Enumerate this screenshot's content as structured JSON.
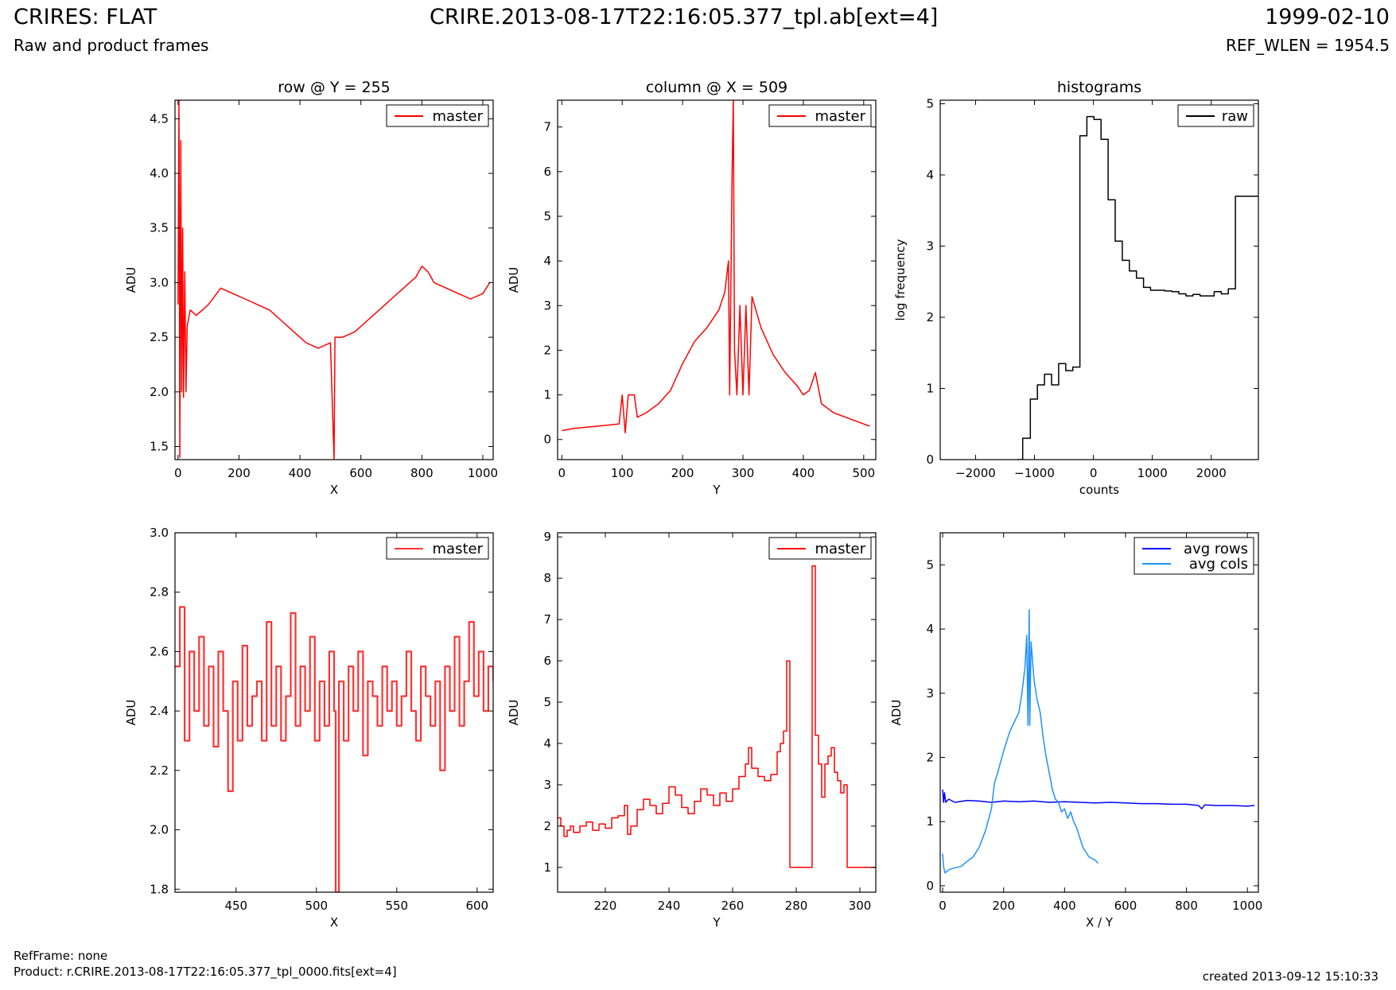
{
  "header": {
    "title": "CRIRES: FLAT",
    "subtitle": "Raw and product frames",
    "filename": "CRIRE.2013-08-17T22:16:05.377_tpl.ab[ext=4]",
    "date": "1999-02-10",
    "ref_wlen": "REF_WLEN = 1954.5"
  },
  "footer": {
    "refframe": "RefFrame: none",
    "product": "Product: r.CRIRE.2013-08-17T22:16:05.377_tpl_0000.fits[ext=4]",
    "created": "created 2013-09-12 15:10:33"
  },
  "colors": {
    "master": "#ff0000",
    "raw": "#000000",
    "avg_rows": "#0000ff",
    "avg_cols": "#1e90ff"
  },
  "chart_data": [
    {
      "id": "row-full",
      "type": "line",
      "title": "row @ Y = 255",
      "xlabel": "X",
      "ylabel": "ADU",
      "xlim": [
        -10,
        1034
      ],
      "ylim": [
        1.38,
        4.67
      ],
      "xticks": [
        0,
        200,
        400,
        600,
        800,
        1000
      ],
      "yticks": [
        1.5,
        2.0,
        2.5,
        3.0,
        3.5,
        4.0,
        4.5
      ],
      "ytick_labels": [
        "1.5",
        "2.0",
        "2.5",
        "3.0",
        "3.5",
        "4.0",
        "4.5"
      ],
      "step": false,
      "series": [
        {
          "name": "master",
          "color": "#ff0000",
          "x": [
            0,
            3,
            6,
            9,
            12,
            15,
            18,
            22,
            26,
            30,
            40,
            60,
            100,
            140,
            180,
            220,
            260,
            300,
            340,
            380,
            420,
            460,
            500,
            512,
            515,
            540,
            580,
            620,
            660,
            700,
            740,
            780,
            800,
            820,
            840,
            880,
            920,
            960,
            1000,
            1023
          ],
          "y": [
            2.8,
            4.67,
            1.4,
            4.3,
            2.0,
            3.5,
            1.95,
            3.1,
            2.0,
            2.6,
            2.75,
            2.7,
            2.8,
            2.95,
            2.9,
            2.85,
            2.8,
            2.75,
            2.65,
            2.55,
            2.45,
            2.4,
            2.45,
            1.38,
            2.5,
            2.5,
            2.55,
            2.65,
            2.75,
            2.85,
            2.95,
            3.05,
            3.15,
            3.1,
            3.0,
            2.95,
            2.9,
            2.85,
            2.9,
            3.0
          ]
        }
      ],
      "legend": [
        "master"
      ],
      "legend_loc": "top-right"
    },
    {
      "id": "col-full",
      "type": "line",
      "title": "column @ X = 509",
      "xlabel": "Y",
      "ylabel": "ADU",
      "xlim": [
        -7,
        520
      ],
      "ylim": [
        -0.45,
        7.6
      ],
      "xticks": [
        0,
        100,
        200,
        300,
        400,
        500
      ],
      "yticks": [
        0,
        1,
        2,
        3,
        4,
        5,
        6,
        7
      ],
      "step": false,
      "series": [
        {
          "name": "master",
          "color": "#ff0000",
          "x": [
            0,
            20,
            60,
            95,
            100,
            105,
            110,
            120,
            125,
            140,
            160,
            180,
            200,
            220,
            240,
            260,
            270,
            276,
            278,
            282,
            284,
            286,
            290,
            295,
            300,
            305,
            310,
            315,
            330,
            350,
            370,
            390,
            400,
            410,
            420,
            430,
            450,
            470,
            490,
            510
          ],
          "y": [
            0.2,
            0.25,
            0.3,
            0.35,
            1.0,
            0.15,
            1.0,
            1.0,
            0.5,
            0.6,
            0.8,
            1.1,
            1.7,
            2.2,
            2.5,
            2.9,
            3.3,
            4.0,
            1.0,
            6.0,
            7.6,
            2.0,
            1.0,
            3.0,
            1.0,
            3.0,
            1.0,
            3.2,
            2.5,
            1.9,
            1.5,
            1.2,
            1.0,
            1.1,
            1.5,
            0.8,
            0.6,
            0.5,
            0.4,
            0.3
          ]
        }
      ],
      "legend": [
        "master"
      ],
      "legend_loc": "top-right"
    },
    {
      "id": "histograms",
      "type": "line",
      "title": "histograms",
      "xlabel": "counts",
      "ylabel": "log frequency",
      "xlim": [
        -2600,
        2800
      ],
      "ylim": [
        0,
        5.05
      ],
      "xticks": [
        -2000,
        -1000,
        0,
        1000,
        2000
      ],
      "xtick_labels": [
        "−2000",
        "−1000",
        "0",
        "1000",
        "2000"
      ],
      "yticks": [
        0,
        1,
        2,
        3,
        4,
        5
      ],
      "step": true,
      "series": [
        {
          "name": "raw",
          "color": "#000000",
          "x": [
            -1300,
            -1200,
            -1070,
            -950,
            -830,
            -710,
            -590,
            -470,
            -350,
            -230,
            -110,
            10,
            130,
            250,
            370,
            490,
            610,
            730,
            850,
            970,
            1090,
            1210,
            1330,
            1450,
            1570,
            1690,
            1810,
            1930,
            2050,
            2170,
            2290,
            2410,
            2530,
            2650
          ],
          "y": [
            0,
            0.3,
            0.85,
            1.05,
            1.2,
            1.05,
            1.35,
            1.25,
            1.3,
            4.55,
            4.82,
            4.78,
            4.5,
            3.65,
            3.07,
            2.8,
            2.65,
            2.55,
            2.42,
            2.38,
            2.38,
            2.37,
            2.36,
            2.33,
            2.3,
            2.32,
            2.3,
            2.3,
            2.36,
            2.33,
            2.4,
            3.7,
            3.7,
            3.7
          ]
        }
      ],
      "legend": [
        "raw"
      ],
      "legend_loc": "top-right"
    },
    {
      "id": "row-zoom",
      "type": "line",
      "title": "",
      "xlabel": "X",
      "ylabel": "ADU",
      "xlim": [
        412,
        610
      ],
      "ylim": [
        1.79,
        3.0
      ],
      "xticks": [
        450,
        500,
        550,
        600
      ],
      "yticks": [
        1.8,
        2.0,
        2.2,
        2.4,
        2.6,
        2.8,
        3.0
      ],
      "ytick_labels": [
        "1.8",
        "2.0",
        "2.2",
        "2.4",
        "2.6",
        "2.8",
        "3.0"
      ],
      "step": true,
      "series": [
        {
          "name": "master",
          "color": "#ff3333",
          "x": [
            412,
            415,
            418,
            421,
            424,
            427,
            430,
            433,
            436,
            439,
            442,
            445,
            448,
            451,
            454,
            457,
            460,
            463,
            466,
            469,
            472,
            475,
            478,
            481,
            484,
            487,
            490,
            493,
            496,
            499,
            502,
            505,
            508,
            511,
            512,
            514,
            517,
            520,
            523,
            526,
            529,
            532,
            535,
            538,
            541,
            544,
            547,
            550,
            553,
            556,
            559,
            562,
            565,
            568,
            571,
            574,
            577,
            580,
            583,
            586,
            589,
            592,
            595,
            598,
            601,
            604,
            607,
            610
          ],
          "y": [
            2.55,
            2.75,
            2.3,
            2.6,
            2.4,
            2.65,
            2.35,
            2.55,
            2.28,
            2.6,
            2.4,
            2.13,
            2.5,
            2.3,
            2.62,
            2.35,
            2.45,
            2.5,
            2.3,
            2.7,
            2.35,
            2.55,
            2.3,
            2.45,
            2.73,
            2.35,
            2.55,
            2.4,
            2.65,
            2.3,
            2.5,
            2.35,
            2.6,
            2.4,
            1.79,
            2.5,
            2.3,
            2.55,
            2.4,
            2.6,
            2.25,
            2.5,
            2.45,
            2.35,
            2.55,
            2.4,
            2.5,
            2.35,
            2.45,
            2.6,
            2.4,
            2.3,
            2.55,
            2.45,
            2.35,
            2.5,
            2.2,
            2.55,
            2.4,
            2.65,
            2.35,
            2.5,
            2.7,
            2.45,
            2.6,
            2.4,
            2.55,
            2.5
          ]
        }
      ],
      "legend": [
        "master"
      ],
      "legend_loc": "top-right"
    },
    {
      "id": "col-zoom",
      "type": "line",
      "title": "",
      "xlabel": "Y",
      "ylabel": "ADU",
      "xlim": [
        205,
        305
      ],
      "ylim": [
        0.4,
        9.1
      ],
      "xticks": [
        220,
        240,
        260,
        280,
        300
      ],
      "yticks": [
        1,
        2,
        3,
        4,
        5,
        6,
        7,
        8,
        9
      ],
      "step": true,
      "series": [
        {
          "name": "master",
          "color": "#ff0000",
          "x": [
            205,
            206,
            207,
            208,
            209,
            210,
            212,
            214,
            216,
            218,
            220,
            222,
            224,
            226,
            227,
            228,
            230,
            232,
            234,
            236,
            238,
            240,
            242,
            244,
            246,
            248,
            250,
            252,
            254,
            256,
            258,
            260,
            262,
            264,
            265,
            266,
            268,
            270,
            272,
            274,
            275,
            276,
            277,
            278,
            281,
            284,
            285,
            286,
            287,
            288,
            289,
            290,
            291,
            292,
            293,
            294,
            295,
            296,
            297,
            298,
            305
          ],
          "y": [
            2.2,
            2.0,
            1.75,
            1.9,
            2.0,
            1.85,
            2.0,
            2.1,
            1.9,
            2.05,
            1.95,
            2.2,
            2.25,
            2.5,
            1.8,
            2.0,
            2.4,
            2.65,
            2.5,
            2.3,
            2.55,
            2.95,
            2.75,
            2.45,
            2.3,
            2.6,
            2.9,
            2.75,
            2.5,
            2.8,
            2.6,
            2.9,
            3.2,
            3.5,
            3.9,
            3.4,
            3.2,
            3.1,
            3.25,
            3.8,
            4.0,
            4.3,
            6.0,
            1.0,
            1.0,
            1.0,
            8.3,
            4.2,
            3.5,
            2.7,
            3.5,
            3.7,
            3.9,
            3.3,
            3.1,
            2.8,
            3.0,
            1.0,
            1.0,
            1.0,
            1.0
          ]
        }
      ],
      "legend": [
        "master"
      ],
      "legend_loc": "top-right"
    },
    {
      "id": "averages",
      "type": "line",
      "title": "",
      "xlabel": "X / Y",
      "ylabel": "ADU",
      "xlim": [
        -8,
        1036
      ],
      "ylim": [
        -0.1,
        5.5
      ],
      "xticks": [
        0,
        200,
        400,
        600,
        800,
        1000
      ],
      "yticks": [
        0,
        1,
        2,
        3,
        4,
        5
      ],
      "step": false,
      "series": [
        {
          "name": "avg rows",
          "color": "#0000ff",
          "x": [
            0,
            3,
            6,
            10,
            20,
            40,
            80,
            120,
            160,
            200,
            250,
            300,
            350,
            400,
            450,
            500,
            550,
            600,
            650,
            700,
            750,
            800,
            840,
            850,
            860,
            900,
            950,
            1000,
            1023
          ],
          "y": [
            1.5,
            1.3,
            1.45,
            1.3,
            1.35,
            1.3,
            1.33,
            1.32,
            1.3,
            1.32,
            1.31,
            1.32,
            1.3,
            1.31,
            1.3,
            1.29,
            1.3,
            1.29,
            1.28,
            1.28,
            1.27,
            1.27,
            1.25,
            1.2,
            1.26,
            1.25,
            1.25,
            1.24,
            1.25
          ]
        },
        {
          "name": "avg cols",
          "color": "#1e90ff",
          "x": [
            0,
            3,
            8,
            20,
            40,
            60,
            80,
            100,
            120,
            140,
            160,
            170,
            180,
            200,
            220,
            240,
            250,
            260,
            270,
            276,
            280,
            284,
            286,
            290,
            300,
            310,
            320,
            330,
            340,
            350,
            360,
            370,
            380,
            390,
            400,
            410,
            420,
            430,
            440,
            460,
            480,
            500,
            510
          ],
          "y": [
            0.5,
            0.3,
            0.2,
            0.25,
            0.28,
            0.3,
            0.38,
            0.45,
            0.6,
            0.85,
            1.2,
            1.6,
            1.75,
            2.1,
            2.4,
            2.6,
            2.7,
            3.0,
            3.4,
            3.9,
            2.5,
            4.3,
            2.5,
            3.8,
            3.2,
            2.9,
            2.7,
            2.3,
            2.0,
            1.75,
            1.5,
            1.35,
            1.3,
            1.15,
            1.2,
            1.05,
            1.15,
            1.0,
            0.9,
            0.6,
            0.45,
            0.4,
            0.35
          ]
        }
      ],
      "legend": [
        "avg rows",
        "avg cols"
      ],
      "legend_loc": "top-right"
    }
  ]
}
